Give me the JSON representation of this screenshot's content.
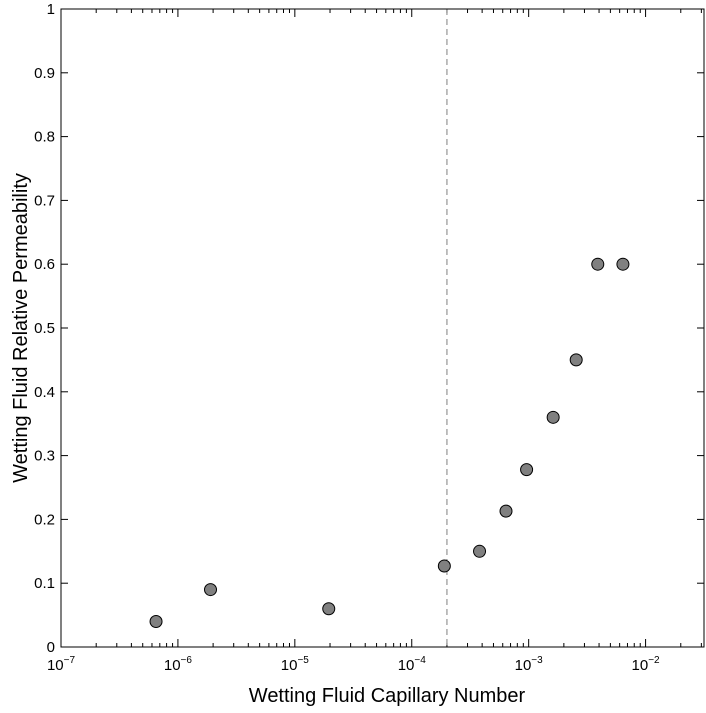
{
  "chart_data": {
    "type": "scatter",
    "title": "",
    "xlabel": "Wetting Fluid Capillary Number",
    "ylabel": "Wetting Fluid Relative Permeability",
    "x_scale": "log",
    "xlim": [
      1e-07,
      0.0316
    ],
    "ylim": [
      0,
      1
    ],
    "x_ticks": [
      1e-07,
      1e-06,
      1e-05,
      0.0001,
      0.001,
      0.01
    ],
    "x_tick_labels": [
      {
        "base": "10",
        "exp": "−7"
      },
      {
        "base": "10",
        "exp": "−6"
      },
      {
        "base": "10",
        "exp": "−5"
      },
      {
        "base": "10",
        "exp": "−4"
      },
      {
        "base": "10",
        "exp": "−3"
      },
      {
        "base": "10",
        "exp": "−2"
      }
    ],
    "y_ticks": [
      0,
      0.1,
      0.2,
      0.3,
      0.4,
      0.5,
      0.6,
      0.7,
      0.8,
      0.9,
      1
    ],
    "y_tick_labels": [
      "0",
      "0.1",
      "0.2",
      "0.3",
      "0.4",
      "0.5",
      "0.6",
      "0.7",
      "0.8",
      "0.9",
      "1"
    ],
    "grid": false,
    "legend": "none",
    "marker_color": "#808080",
    "reference_line": {
      "x": 0.0002,
      "style": "dashed",
      "color": "#808080"
    },
    "series": [
      {
        "points": [
          {
            "x": 6.5e-07,
            "y": 0.04
          },
          {
            "x": 1.9e-06,
            "y": 0.09
          },
          {
            "x": 1.95e-05,
            "y": 0.06
          },
          {
            "x": 0.00019,
            "y": 0.127
          },
          {
            "x": 0.00038,
            "y": 0.15
          },
          {
            "x": 0.00064,
            "y": 0.213
          },
          {
            "x": 0.00096,
            "y": 0.278
          },
          {
            "x": 0.00162,
            "y": 0.36
          },
          {
            "x": 0.00255,
            "y": 0.45
          },
          {
            "x": 0.0039,
            "y": 0.6
          },
          {
            "x": 0.0064,
            "y": 0.6
          }
        ]
      }
    ]
  }
}
